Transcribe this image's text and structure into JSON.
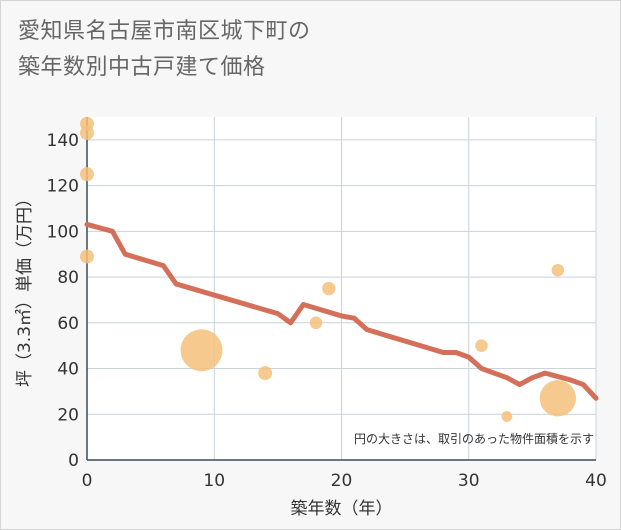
{
  "chart_data": {
    "type": "scatter",
    "title_lines": [
      "愛知県名古屋市南区城下町の",
      "築年数別中古戸建て価格"
    ],
    "xlabel": "築年数（年）",
    "ylabel": "坪（3.3㎡）単価（万円）",
    "xlim": [
      0,
      40
    ],
    "ylim": [
      0,
      150
    ],
    "xticks": [
      0,
      10,
      20,
      30,
      40
    ],
    "yticks": [
      0,
      20,
      40,
      60,
      80,
      100,
      120,
      140
    ],
    "note": "円の大きさは、取引のあった物件面積を示す",
    "colors": {
      "bubble": "#f5c07a",
      "trend": "#d4705a",
      "grid": "#c8d3dc",
      "axis": "#3a4a5a"
    },
    "points": [
      {
        "x": 0,
        "y": 147,
        "size": 1
      },
      {
        "x": 0,
        "y": 143,
        "size": 1
      },
      {
        "x": 0,
        "y": 125,
        "size": 1
      },
      {
        "x": 0,
        "y": 89,
        "size": 1
      },
      {
        "x": 9,
        "y": 48,
        "size": 4
      },
      {
        "x": 14,
        "y": 38,
        "size": 1
      },
      {
        "x": 18,
        "y": 60,
        "size": 0.8
      },
      {
        "x": 19,
        "y": 75,
        "size": 0.9
      },
      {
        "x": 31,
        "y": 50,
        "size": 0.8
      },
      {
        "x": 33,
        "y": 19,
        "size": 0.6
      },
      {
        "x": 37,
        "y": 83,
        "size": 0.8
      },
      {
        "x": 37,
        "y": 27,
        "size": 3
      }
    ],
    "trend": {
      "x": [
        0,
        2,
        3,
        6,
        7,
        15,
        16,
        17,
        20,
        21,
        22,
        28,
        29,
        30,
        31,
        33,
        34,
        35,
        36,
        38,
        39,
        40
      ],
      "y": [
        103,
        100,
        90,
        85,
        77,
        64,
        60,
        68,
        63,
        62,
        57,
        47,
        47,
        45,
        40,
        36,
        33,
        36,
        38,
        35,
        33,
        27
      ]
    }
  }
}
